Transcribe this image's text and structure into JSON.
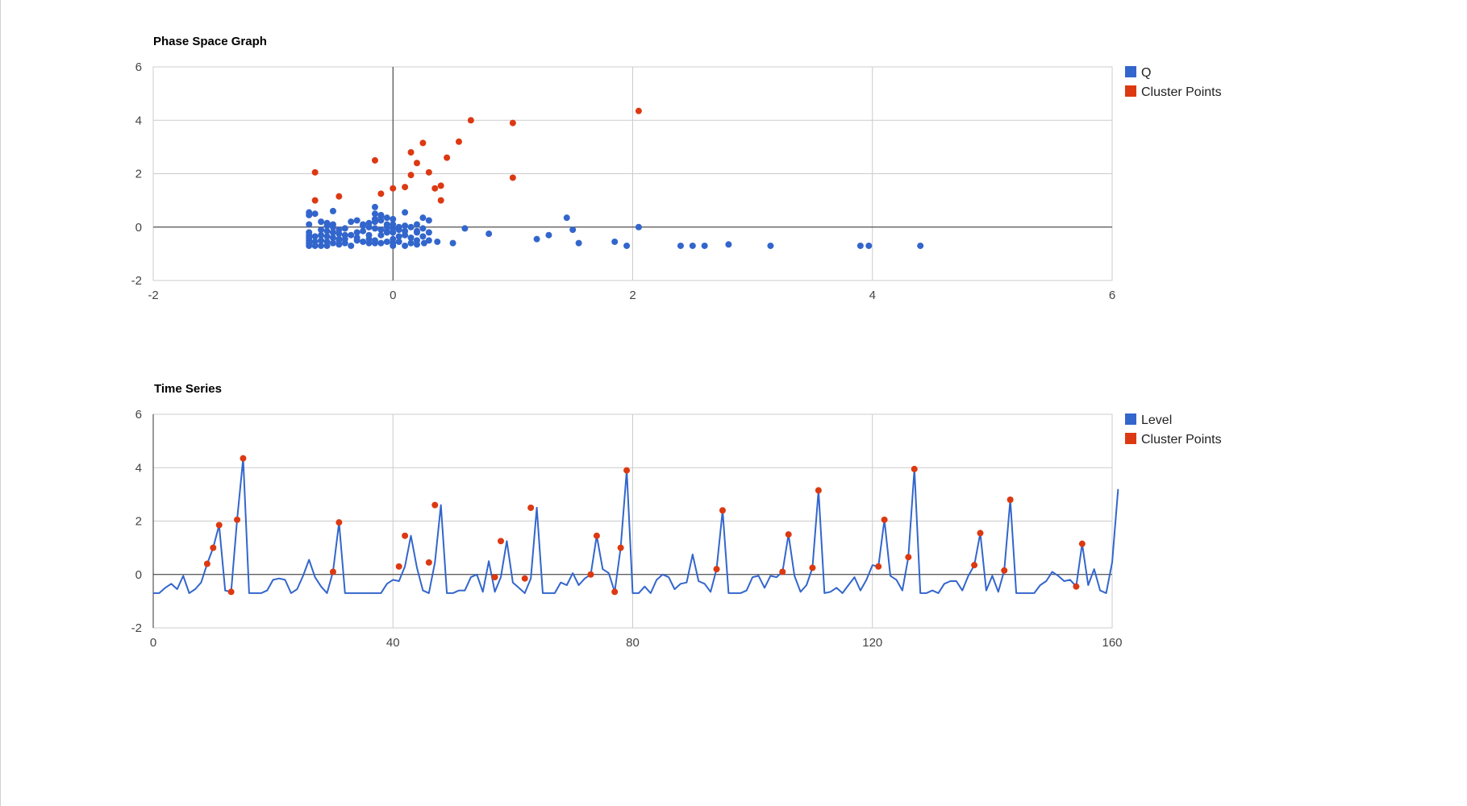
{
  "colors": {
    "series_blue": "#3366cc",
    "cluster_red": "#dc3912",
    "grid": "#cccccc",
    "axis": "#333333"
  },
  "chart_data": [
    {
      "id": "phase",
      "type": "scatter",
      "title": "Phase Space Graph",
      "xlabel": "",
      "ylabel": "",
      "xlim": [
        -2,
        6
      ],
      "ylim": [
        -2,
        6
      ],
      "x_ticks": [
        "-2",
        "0",
        "2",
        "4",
        "6"
      ],
      "y_ticks": [
        "-2",
        "0",
        "2",
        "4",
        "6"
      ],
      "grid": true,
      "legend_position": "right",
      "series": [
        {
          "name": "Q",
          "color": "#3366cc",
          "points": [
            [
              -0.7,
              -0.7
            ],
            [
              -0.7,
              -0.6
            ],
            [
              -0.7,
              -0.5
            ],
            [
              -0.7,
              -0.4
            ],
            [
              -0.7,
              -0.3
            ],
            [
              -0.7,
              -0.2
            ],
            [
              -0.7,
              0.1
            ],
            [
              -0.7,
              0.45
            ],
            [
              -0.7,
              0.55
            ],
            [
              -0.65,
              -0.7
            ],
            [
              -0.65,
              -0.55
            ],
            [
              -0.65,
              -0.35
            ],
            [
              -0.65,
              0.5
            ],
            [
              -0.6,
              -0.7
            ],
            [
              -0.6,
              -0.5
            ],
            [
              -0.6,
              -0.3
            ],
            [
              -0.6,
              -0.1
            ],
            [
              -0.6,
              0.2
            ],
            [
              -0.55,
              -0.7
            ],
            [
              -0.55,
              -0.55
            ],
            [
              -0.55,
              -0.35
            ],
            [
              -0.55,
              -0.15
            ],
            [
              -0.55,
              0.05
            ],
            [
              -0.55,
              0.15
            ],
            [
              -0.5,
              -0.6
            ],
            [
              -0.5,
              -0.4
            ],
            [
              -0.5,
              -0.2
            ],
            [
              -0.5,
              0.0
            ],
            [
              -0.5,
              0.1
            ],
            [
              -0.5,
              0.6
            ],
            [
              -0.45,
              -0.65
            ],
            [
              -0.45,
              -0.45
            ],
            [
              -0.45,
              -0.25
            ],
            [
              -0.45,
              -0.1
            ],
            [
              -0.4,
              -0.6
            ],
            [
              -0.4,
              -0.3
            ],
            [
              -0.4,
              -0.05
            ],
            [
              -0.35,
              -0.7
            ],
            [
              -0.35,
              -0.3
            ],
            [
              -0.35,
              0.2
            ],
            [
              -0.3,
              -0.2
            ],
            [
              -0.3,
              -0.4
            ],
            [
              -0.3,
              0.25
            ],
            [
              -0.25,
              -0.55
            ],
            [
              -0.25,
              -0.15
            ],
            [
              -0.25,
              0.05
            ],
            [
              -0.2,
              -0.6
            ],
            [
              -0.2,
              -0.3
            ],
            [
              -0.2,
              0.0
            ],
            [
              -0.15,
              -0.5
            ],
            [
              -0.15,
              0.3
            ],
            [
              -0.15,
              0.75
            ],
            [
              -0.1,
              -0.3
            ],
            [
              -0.1,
              0.4
            ],
            [
              -0.1,
              -0.6
            ],
            [
              -0.05,
              -0.55
            ],
            [
              -0.05,
              -0.2
            ],
            [
              -0.05,
              0.1
            ],
            [
              0.0,
              -0.7
            ],
            [
              0.0,
              -0.45
            ],
            [
              0.0,
              -0.2
            ],
            [
              0.0,
              0.1
            ],
            [
              0.05,
              -0.55
            ],
            [
              0.05,
              -0.35
            ],
            [
              0.05,
              0.0
            ],
            [
              0.1,
              -0.7
            ],
            [
              0.1,
              -0.3
            ],
            [
              0.1,
              0.05
            ],
            [
              0.1,
              0.55
            ],
            [
              0.15,
              -0.6
            ],
            [
              0.15,
              -0.4
            ],
            [
              0.15,
              0.0
            ],
            [
              0.2,
              -0.65
            ],
            [
              0.2,
              -0.5
            ],
            [
              0.2,
              -0.2
            ],
            [
              0.2,
              0.1
            ],
            [
              0.25,
              -0.35
            ],
            [
              0.25,
              0.35
            ],
            [
              0.3,
              -0.5
            ],
            [
              0.3,
              -0.2
            ],
            [
              -0.15,
              -0.6
            ],
            [
              -0.2,
              -0.45
            ],
            [
              -0.3,
              -0.5
            ],
            [
              -0.4,
              -0.45
            ],
            [
              -0.45,
              -0.5
            ],
            [
              -0.15,
              0.5
            ],
            [
              -0.1,
              0.45
            ],
            [
              -0.05,
              0.35
            ],
            [
              0.0,
              0.3
            ],
            [
              0.0,
              -0.6
            ],
            [
              0.25,
              -0.05
            ],
            [
              0.2,
              -0.15
            ],
            [
              -0.05,
              0.0
            ],
            [
              0.0,
              -0.05
            ],
            [
              0.05,
              -0.1
            ],
            [
              0.1,
              -0.15
            ],
            [
              -0.2,
              0.0
            ],
            [
              -0.15,
              -0.05
            ],
            [
              -0.1,
              -0.1
            ],
            [
              -0.05,
              -0.15
            ],
            [
              -0.25,
              0.1
            ],
            [
              -0.2,
              0.15
            ],
            [
              -0.15,
              0.2
            ],
            [
              -0.1,
              0.25
            ],
            [
              0.26,
              -0.6
            ],
            [
              0.3,
              0.25
            ],
            [
              0.37,
              -0.55
            ],
            [
              0.5,
              -0.6
            ],
            [
              0.6,
              -0.05
            ],
            [
              0.8,
              -0.25
            ],
            [
              1.2,
              -0.45
            ],
            [
              1.3,
              -0.3
            ],
            [
              1.45,
              0.35
            ],
            [
              1.5,
              -0.1
            ],
            [
              1.55,
              -0.6
            ],
            [
              1.85,
              -0.55
            ],
            [
              1.95,
              -0.7
            ],
            [
              2.05,
              0.0
            ],
            [
              2.4,
              -0.7
            ],
            [
              2.5,
              -0.7
            ],
            [
              2.6,
              -0.7
            ],
            [
              2.8,
              -0.65
            ],
            [
              3.15,
              -0.7
            ],
            [
              3.9,
              -0.7
            ],
            [
              3.97,
              -0.7
            ],
            [
              4.4,
              -0.7
            ]
          ]
        },
        {
          "name": "Cluster Points",
          "color": "#dc3912",
          "points": [
            [
              -0.65,
              2.05
            ],
            [
              -0.65,
              1.0
            ],
            [
              -0.45,
              1.15
            ],
            [
              -0.15,
              2.5
            ],
            [
              -0.1,
              1.25
            ],
            [
              0.0,
              1.45
            ],
            [
              0.1,
              1.5
            ],
            [
              0.15,
              2.8
            ],
            [
              0.15,
              1.95
            ],
            [
              0.2,
              2.4
            ],
            [
              0.25,
              3.15
            ],
            [
              0.3,
              2.05
            ],
            [
              0.35,
              1.45
            ],
            [
              0.4,
              1.55
            ],
            [
              0.4,
              1.0
            ],
            [
              0.45,
              2.6
            ],
            [
              0.55,
              3.2
            ],
            [
              0.65,
              4.0
            ],
            [
              1.0,
              1.85
            ],
            [
              1.0,
              3.9
            ],
            [
              2.05,
              4.35
            ]
          ]
        }
      ]
    },
    {
      "id": "timeseries",
      "type": "line",
      "title": "Time Series",
      "xlabel": "",
      "ylabel": "",
      "xlim": [
        0,
        160
      ],
      "ylim": [
        -2,
        6
      ],
      "x_ticks": [
        "0",
        "40",
        "80",
        "120",
        "160"
      ],
      "y_ticks": [
        "-2",
        "0",
        "2",
        "4",
        "6"
      ],
      "grid": true,
      "legend_position": "right",
      "series": [
        {
          "name": "Level",
          "color": "#3366cc",
          "x_start": 0,
          "values": [
            -0.7,
            -0.7,
            -0.5,
            -0.35,
            -0.55,
            -0.05,
            -0.7,
            -0.55,
            -0.3,
            0.4,
            1.0,
            1.85,
            -0.6,
            -0.65,
            2.05,
            4.35,
            -0.7,
            -0.7,
            -0.7,
            -0.6,
            -0.2,
            -0.15,
            -0.2,
            -0.7,
            -0.55,
            -0.05,
            0.55,
            -0.1,
            -0.45,
            -0.7,
            0.1,
            1.95,
            -0.7,
            -0.7,
            -0.7,
            -0.7,
            -0.7,
            -0.7,
            -0.7,
            -0.35,
            -0.2,
            -0.25,
            0.3,
            1.45,
            0.25,
            -0.6,
            -0.7,
            0.45,
            2.6,
            -0.7,
            -0.7,
            -0.6,
            -0.6,
            -0.1,
            0.0,
            -0.65,
            0.5,
            -0.65,
            -0.1,
            1.25,
            -0.3,
            -0.5,
            -0.7,
            -0.15,
            2.5,
            -0.7,
            -0.7,
            -0.7,
            -0.3,
            -0.4,
            0.05,
            -0.4,
            -0.15,
            0.0,
            1.45,
            0.2,
            0.05,
            -0.65,
            1.0,
            3.9,
            -0.7,
            -0.7,
            -0.45,
            -0.7,
            -0.2,
            0.0,
            -0.1,
            -0.55,
            -0.35,
            -0.3,
            0.75,
            -0.25,
            -0.35,
            -0.65,
            0.2,
            2.4,
            -0.7,
            -0.7,
            -0.7,
            -0.6,
            -0.1,
            -0.05,
            -0.5,
            -0.05,
            -0.1,
            0.1,
            1.5,
            -0.05,
            -0.65,
            -0.4,
            0.25,
            3.15,
            -0.7,
            -0.65,
            -0.5,
            -0.7,
            -0.4,
            -0.1,
            -0.6,
            -0.2,
            0.35,
            0.3,
            2.05,
            -0.05,
            -0.2,
            -0.6,
            0.65,
            3.95,
            -0.7,
            -0.7,
            -0.6,
            -0.7,
            -0.35,
            -0.25,
            -0.25,
            -0.6,
            -0.05,
            0.35,
            1.55,
            -0.6,
            -0.05,
            -0.65,
            0.15,
            2.8,
            -0.7,
            -0.7,
            -0.7,
            -0.7,
            -0.4,
            -0.25,
            0.1,
            -0.05,
            -0.25,
            -0.2,
            -0.45,
            1.15,
            -0.4,
            0.2,
            -0.6,
            -0.7,
            0.45,
            3.2
          ]
        },
        {
          "name": "Cluster Points",
          "color": "#dc3912",
          "points": [
            [
              9,
              0.4
            ],
            [
              10,
              1.0
            ],
            [
              11,
              1.85
            ],
            [
              13,
              -0.65
            ],
            [
              14,
              2.05
            ],
            [
              15,
              4.35
            ],
            [
              30,
              0.1
            ],
            [
              31,
              1.95
            ],
            [
              41,
              0.3
            ],
            [
              42,
              1.45
            ],
            [
              46,
              0.45
            ],
            [
              47,
              2.6
            ],
            [
              57,
              -0.1
            ],
            [
              58,
              1.25
            ],
            [
              62,
              -0.15
            ],
            [
              63,
              2.5
            ],
            [
              73,
              0.0
            ],
            [
              74,
              1.45
            ],
            [
              77,
              -0.65
            ],
            [
              78,
              1.0
            ],
            [
              79,
              3.9
            ],
            [
              94,
              0.2
            ],
            [
              95,
              2.4
            ],
            [
              105,
              0.1
            ],
            [
              106,
              1.5
            ],
            [
              110,
              0.25
            ],
            [
              111,
              3.15
            ],
            [
              121,
              0.3
            ],
            [
              122,
              2.05
            ],
            [
              126,
              0.65
            ],
            [
              127,
              3.95
            ],
            [
              137,
              0.35
            ],
            [
              138,
              1.55
            ],
            [
              142,
              0.15
            ],
            [
              143,
              2.8
            ],
            [
              154,
              -0.45
            ],
            [
              155,
              1.15
            ]
          ]
        }
      ]
    }
  ]
}
